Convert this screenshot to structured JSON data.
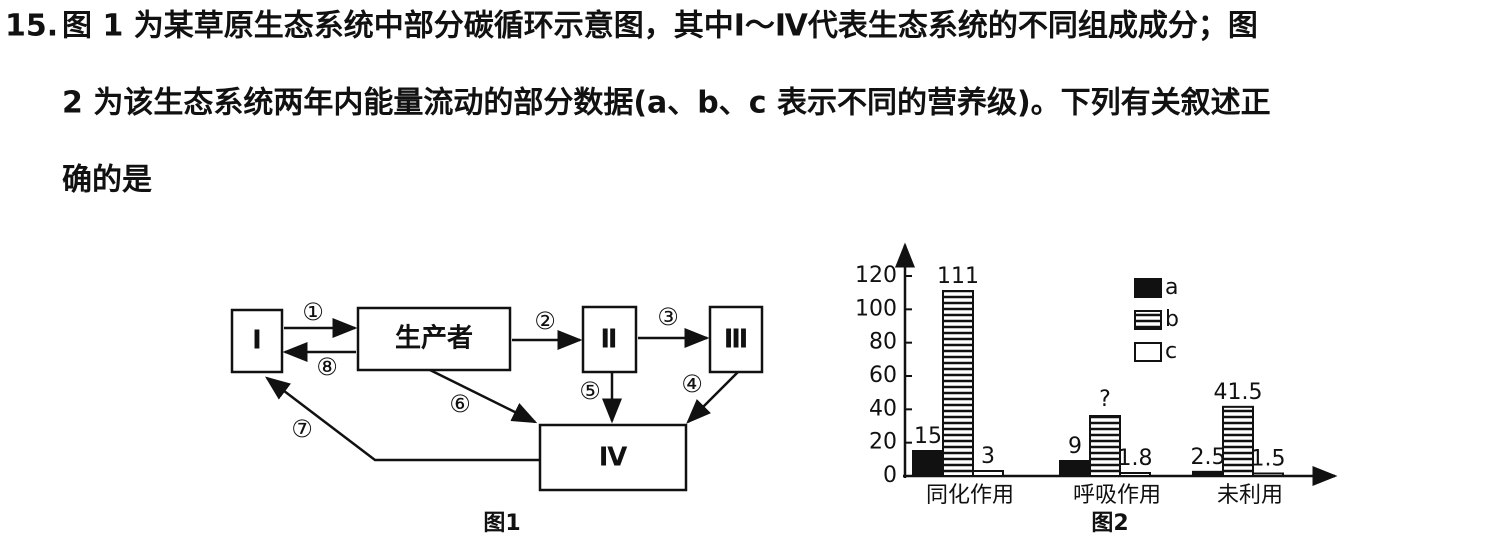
{
  "question": {
    "number": "15.",
    "lines": [
      "图 1 为某草原生态系统中部分碳循环示意图，其中Ⅰ～Ⅳ代表生态系统的不同组成成分；图",
      "2 为该生态系统两年内能量流动的部分数据(a、b、c 表示不同的营养级)。下列有关叙述正",
      "确的是"
    ]
  },
  "figure1": {
    "nodes": [
      "Ⅰ",
      "生产者",
      "Ⅱ",
      "Ⅲ",
      "Ⅳ"
    ],
    "arrows": [
      "①",
      "②",
      "③",
      "④",
      "⑤",
      "⑥",
      "⑦",
      "⑧"
    ],
    "caption": "图1"
  },
  "chart_data": {
    "type": "bar",
    "caption": "图2",
    "categories": [
      "同化作用",
      "呼吸作用",
      "未利用"
    ],
    "series": [
      {
        "name": "a",
        "color": "#111111",
        "values": [
          15,
          9,
          2.5
        ]
      },
      {
        "name": "b",
        "color": "#111111",
        "hatch": "horizontal",
        "values": [
          111,
          36,
          41.5
        ]
      },
      {
        "name": "c",
        "color": "#ffffff",
        "values": [
          3,
          1.8,
          1.5
        ]
      }
    ],
    "annotations": [
      {
        "text": "?",
        "series": 1,
        "index": 1
      }
    ],
    "ylim": [
      0,
      120
    ],
    "yticks": [
      0,
      20,
      40,
      60,
      80,
      100,
      120
    ],
    "grid": false,
    "legend": "top-right"
  }
}
